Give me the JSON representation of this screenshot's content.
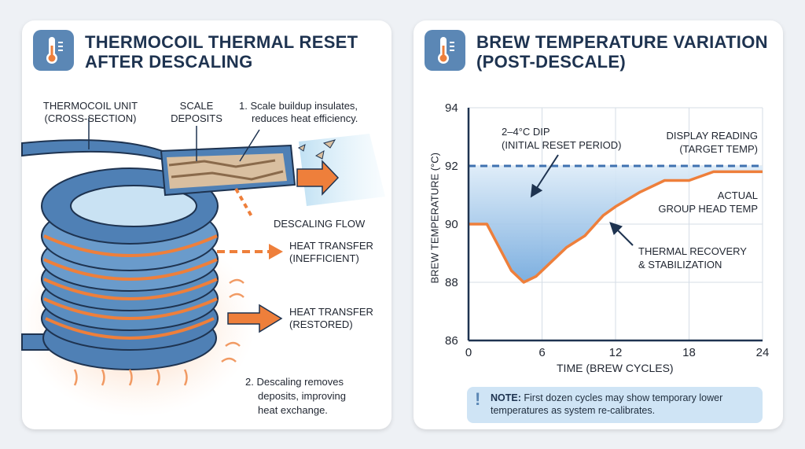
{
  "left_panel": {
    "title_line1": "THERMOCOIL THERMAL RESET",
    "title_line2": "AFTER DESCALING",
    "icon": "thermometer-icon",
    "labels": {
      "unit_1": "THERMOCOIL UNIT",
      "unit_2": "(CROSS-SECTION)",
      "scale_1": "SCALE",
      "scale_2": "DEPOSITS",
      "step1_1": "1. Scale buildup insulates,",
      "step1_2": "reduces heat efficiency.",
      "flow": "DESCALING FLOW",
      "ineff_1": "HEAT TRANSFER",
      "ineff_2": "(INEFFICIENT)",
      "rest_1": "HEAT TRANSFER",
      "rest_2": "(RESTORED)",
      "step2_1": "2. Descaling removes",
      "step2_2": "deposits, improving",
      "step2_3": "heat exchange."
    }
  },
  "right_panel": {
    "title_line1": "BREW TEMPERATURE VARIATION",
    "title_line2": "(POST-DESCALE)",
    "icon": "thermometer-icon",
    "note_label": "NOTE:",
    "note_text_1": "First dozen cycles may show temporary lower",
    "note_text_2": "temperatures as system re-calibrates."
  },
  "colors": {
    "blue": "#5b87b5",
    "dark_blue": "#1e3350",
    "orange": "#ee7f3b",
    "target_line": "#3f72b0"
  },
  "chart_data": {
    "type": "line",
    "xlabel": "TIME (BREW CYCLES)",
    "ylabel": "BREW TEMPERATURE (°C)",
    "xlim": [
      0,
      24
    ],
    "ylim": [
      86,
      94
    ],
    "xticks": [
      "0",
      "6",
      "12",
      "18",
      "24"
    ],
    "yticks": [
      "86",
      "88",
      "90",
      "92",
      "94"
    ],
    "grid": true,
    "target": {
      "value": 92,
      "label_1": "DISPLAY READING",
      "label_2": "(TARGET TEMP)"
    },
    "series": [
      {
        "name": "ACTUAL GROUP HEAD TEMP",
        "label_1": "ACTUAL",
        "label_2": "GROUP HEAD TEMP",
        "x": [
          0,
          1.5,
          2.5,
          3.5,
          4.5,
          5.5,
          6.5,
          8,
          9.5,
          11,
          12,
          14,
          16,
          18,
          20,
          22,
          24
        ],
        "y": [
          90,
          90,
          89.2,
          88.4,
          88,
          88.2,
          88.6,
          89.2,
          89.6,
          90.3,
          90.6,
          91.1,
          91.5,
          91.5,
          91.8,
          91.8,
          91.8
        ]
      }
    ],
    "annotations": {
      "dip_1": "2–4°C DIP",
      "dip_2": "(INITIAL RESET PERIOD)",
      "recovery_1": "THERMAL RECOVERY",
      "recovery_2": "& STABILIZATION"
    }
  }
}
